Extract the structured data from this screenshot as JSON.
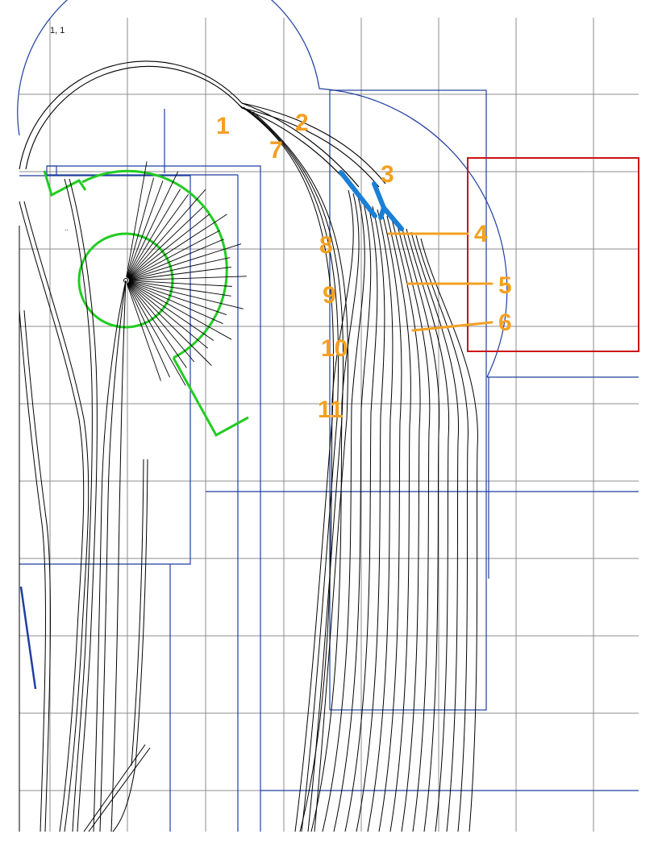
{
  "sheet": {
    "coordinate": "1, 1",
    "marker": "..",
    "annotation_color": "#f4a021",
    "grid_color": "#8c8c8c",
    "baseboard_color": "#1f3f9f",
    "turnout_color": "#1a7fd6",
    "turntable_color": "#22cc22",
    "structure_color": "#cc1111"
  },
  "annotations": [
    "1",
    "2",
    "7",
    "3",
    "4",
    "5",
    "6",
    "8",
    "9",
    "10",
    "11"
  ]
}
